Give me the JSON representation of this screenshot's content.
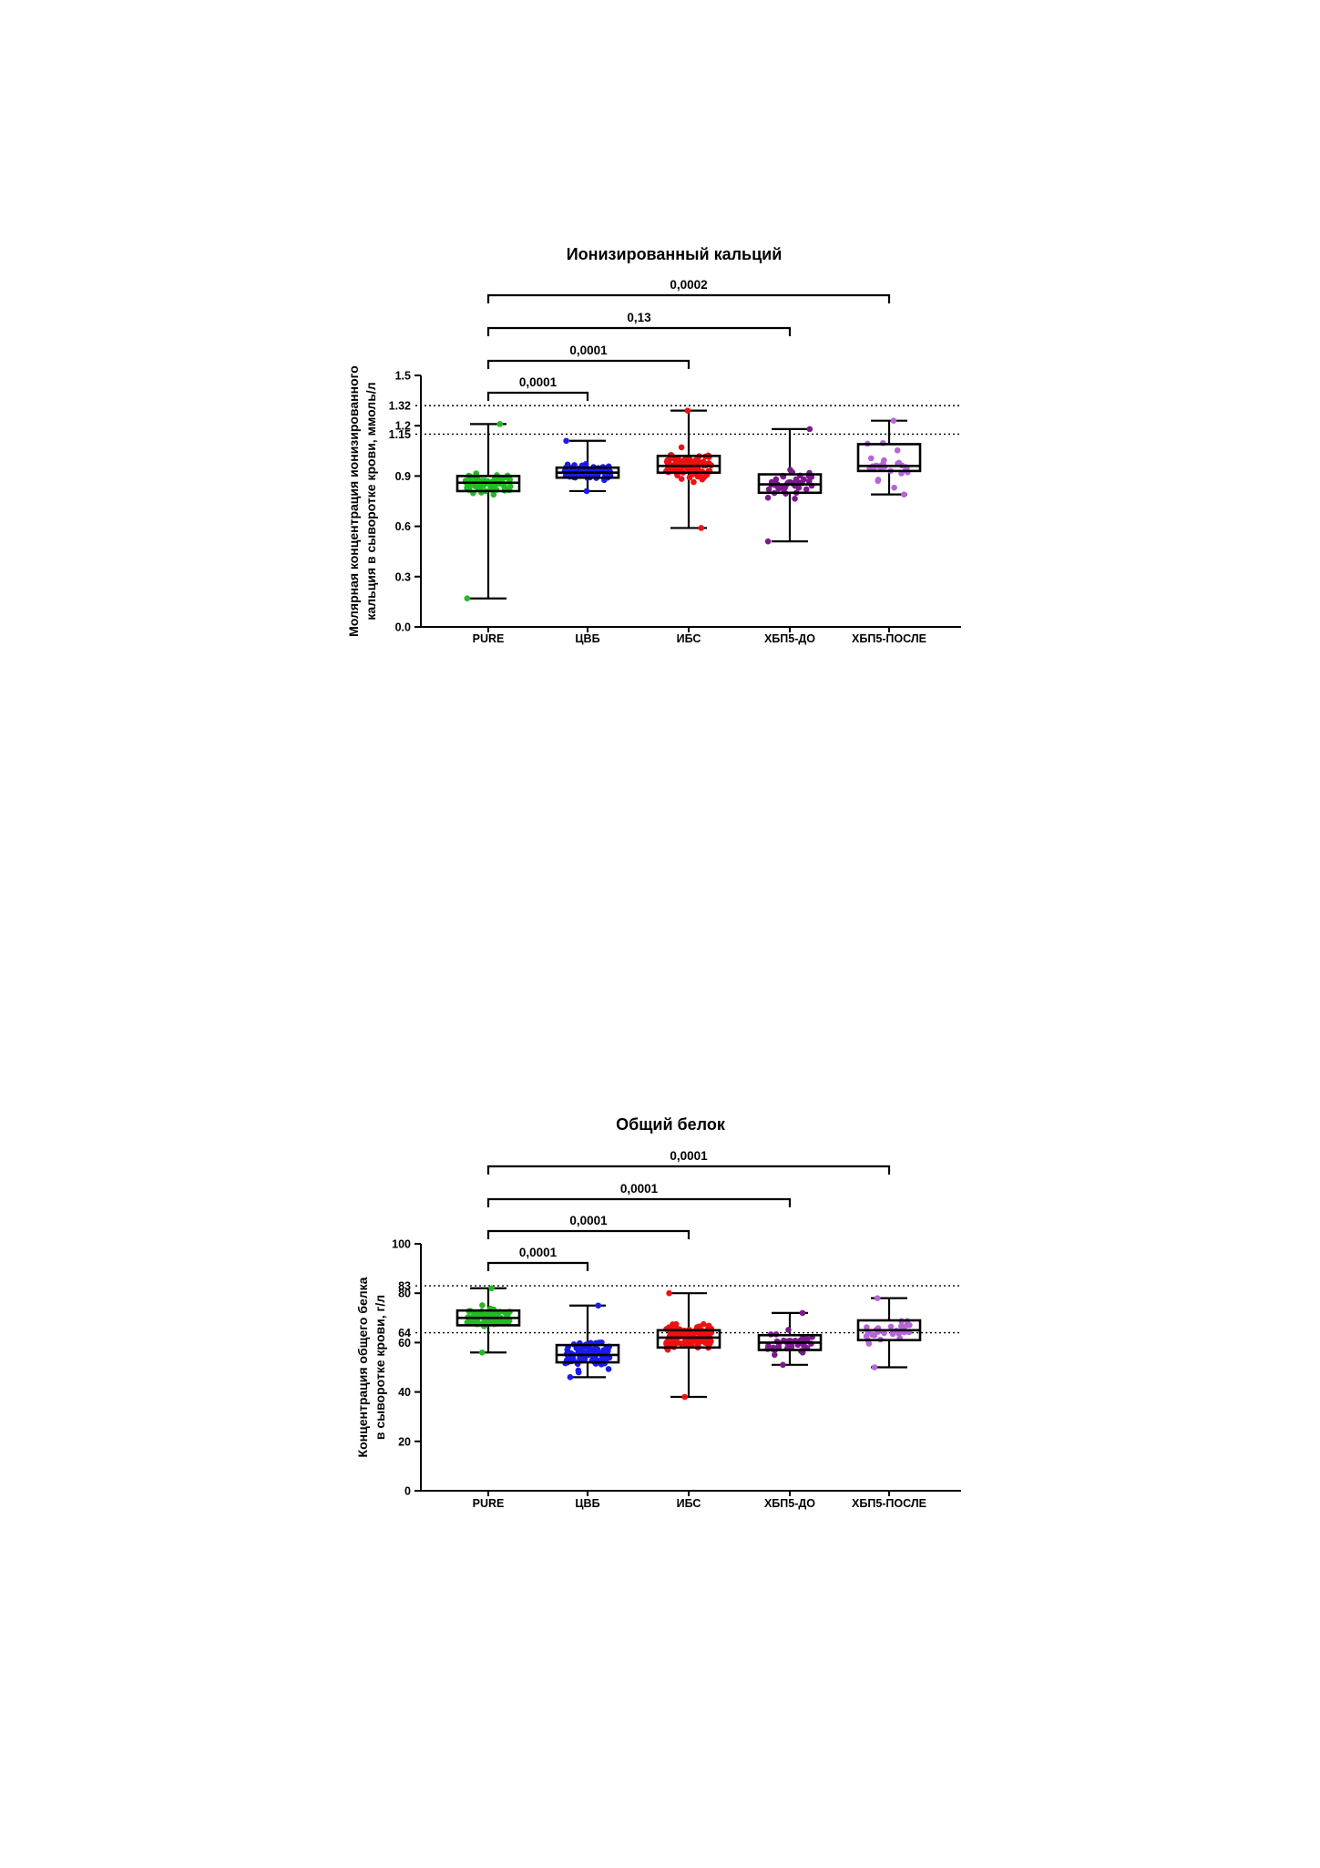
{
  "chart_data": [
    {
      "type": "box",
      "title": "Ионизированный кальций",
      "ylabel_lines": [
        "Молярная концентрация ионизированного",
        "кальция в сыворотке крови, ммоль/л"
      ],
      "categories": [
        "PURE",
        "ЦВБ",
        "ИБС",
        "ХБП5-ДО",
        "ХБП5-ПОСЛЕ"
      ],
      "ylim": [
        0,
        1.5
      ],
      "yticks": [
        "0.0",
        "0.3",
        "0.6",
        "0.9",
        "1.2",
        "1.5"
      ],
      "reference_lines": [
        {
          "value": 1.32,
          "label": "1.32"
        },
        {
          "value": 1.15,
          "label": "1.15"
        }
      ],
      "series": [
        {
          "category": "PURE",
          "color": "#22bb22",
          "min": 0.17,
          "q1": 0.81,
          "median": 0.86,
          "q3": 0.9,
          "max": 1.21,
          "n": 80
        },
        {
          "category": "ЦВБ",
          "color": "#1a1aee",
          "min": 0.81,
          "q1": 0.89,
          "median": 0.92,
          "q3": 0.95,
          "max": 1.11,
          "n": 100
        },
        {
          "category": "ИБС",
          "color": "#ee1111",
          "min": 0.59,
          "q1": 0.92,
          "median": 0.96,
          "q3": 1.02,
          "max": 1.29,
          "n": 110
        },
        {
          "category": "ХБП5-ДО",
          "color": "#7a1a8c",
          "min": 0.51,
          "q1": 0.8,
          "median": 0.85,
          "q3": 0.91,
          "max": 1.18,
          "n": 40
        },
        {
          "category": "ХБП5-ПОСЛЕ",
          "color": "#b566d6",
          "min": 0.79,
          "q1": 0.93,
          "median": 0.96,
          "q3": 1.09,
          "max": 1.23,
          "n": 30
        }
      ],
      "comparisons": [
        {
          "from": "PURE",
          "to": "ЦВБ",
          "p": "0,0001"
        },
        {
          "from": "PURE",
          "to": "ИБС",
          "p": "0,0001"
        },
        {
          "from": "PURE",
          "to": "ХБП5-ДО",
          "p": "0,13"
        },
        {
          "from": "PURE",
          "to": "ХБП5-ПОСЛЕ",
          "p": "0,0002"
        }
      ]
    },
    {
      "type": "box",
      "title": "Общий белок",
      "ylabel_lines": [
        "Концентрация общего белка",
        "в сыворотке крови, г/л"
      ],
      "categories": [
        "PURE",
        "ЦВБ",
        "ИБС",
        "ХБП5-ДО",
        "ХБП5-ПОСЛЕ"
      ],
      "ylim": [
        0,
        100
      ],
      "yticks": [
        "0",
        "20",
        "40",
        "60",
        "80",
        "100"
      ],
      "reference_lines": [
        {
          "value": 83,
          "label": "83"
        },
        {
          "value": 64,
          "label": "64"
        }
      ],
      "series": [
        {
          "category": "PURE",
          "color": "#22bb22",
          "min": 56,
          "q1": 67,
          "median": 70,
          "q3": 73,
          "max": 82,
          "n": 80
        },
        {
          "category": "ЦВБ",
          "color": "#1a1aee",
          "min": 46,
          "q1": 52,
          "median": 55,
          "q3": 59,
          "max": 75,
          "n": 100
        },
        {
          "category": "ИБС",
          "color": "#ee1111",
          "min": 38,
          "q1": 58,
          "median": 62,
          "q3": 65,
          "max": 80,
          "n": 110
        },
        {
          "category": "ХБП5-ДО",
          "color": "#7a1a8c",
          "min": 51,
          "q1": 57,
          "median": 60,
          "q3": 63,
          "max": 72,
          "n": 40
        },
        {
          "category": "ХБП5-ПОСЛЕ",
          "color": "#b566d6",
          "min": 50,
          "q1": 61,
          "median": 65,
          "q3": 69,
          "max": 78,
          "n": 30
        }
      ],
      "comparisons": [
        {
          "from": "PURE",
          "to": "ЦВБ",
          "p": "0,0001"
        },
        {
          "from": "PURE",
          "to": "ИБС",
          "p": "0,0001"
        },
        {
          "from": "PURE",
          "to": "ХБП5-ДО",
          "p": "0,0001"
        },
        {
          "from": "PURE",
          "to": "ХБП5-ПОСЛЕ",
          "p": "0,0001"
        }
      ]
    }
  ]
}
